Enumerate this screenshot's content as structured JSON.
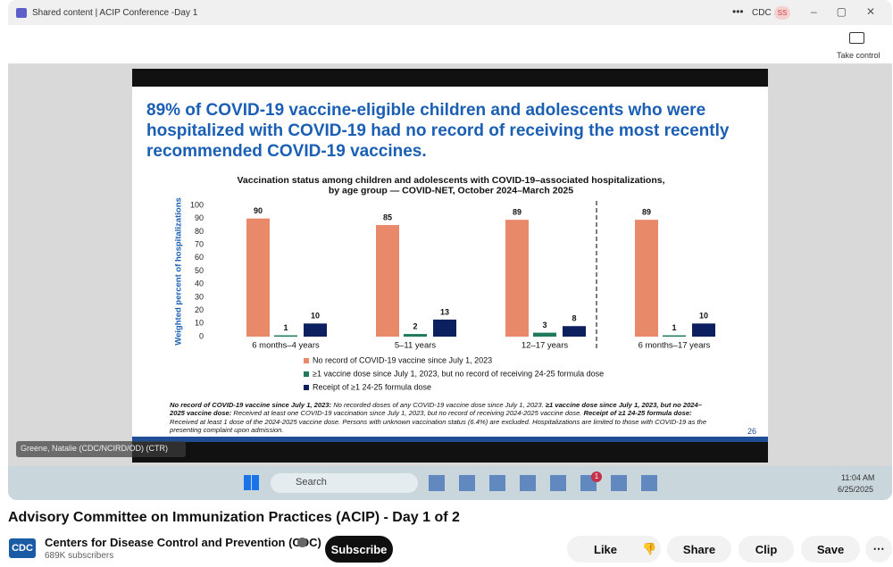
{
  "window": {
    "title": "Shared content | ACIP Conference -Day 1",
    "org": "CDC",
    "user_initials": "SS",
    "take_control": "Take control"
  },
  "slide": {
    "headline": [
      "89% of COVID-19 vaccine-eligible children and adolescents who were",
      "hospitalized with COVID-19 had no record of receiving the most recently",
      "recommended COVID-19 vaccines."
    ],
    "footnote": [
      {
        "term": "No record of COVID-19 vaccine since July 1, 2023:",
        "definition": "No recorded doses of any COVID-19 vaccine dose since July 1, 2023."
      },
      {
        "term": "≥1 vaccine dose since July 1, 2023, but no 2024–2025 vaccine dose:",
        "definition": "Received at least one COVID-19 vaccination since July 1, 2023, but no record of receiving 2024-2025 vaccine dose."
      },
      {
        "term": "Receipt of ≥1 24-25 formula dose:",
        "definition": "Received at least 1 dose of the 2024-2025 vaccine dose. Persons with unknown vaccination status (6.4%) are excluded. Hospitalizations are limited to those with COVID-19 as the presenting complaint upon admission."
      }
    ],
    "page_number": "26"
  },
  "chart_data": {
    "type": "bar",
    "title": [
      "Vaccination status among children and adolescents with COVID-19–associated hospitalizations,",
      "by age group — COVID-NET, October 2024–March 2025"
    ],
    "y_label": "Weighted percent of hospitalizations",
    "categories": [
      "6 months–4 years",
      "5–11 years",
      "12–17 years",
      "6 months–17 years"
    ],
    "series": [
      {
        "name": "No record of COVID-19 vaccine since July 1, 2023",
        "color": "#e8896a",
        "values": [
          90,
          85,
          89,
          89
        ]
      },
      {
        "name": "≥1 vaccine dose since July 1, 2023, but no record of receiving 24-25 formula dose",
        "color": "#1f7a5c",
        "values": [
          1,
          2,
          3,
          1
        ]
      },
      {
        "name": "Receipt of ≥1 24-25 formula dose",
        "color": "#0c1f5e",
        "values": [
          10,
          13,
          8,
          10
        ]
      }
    ],
    "ylim": [
      0,
      100
    ],
    "yticks": [
      0,
      10,
      20,
      30,
      40,
      50,
      60,
      70,
      80,
      90,
      100
    ],
    "grid": false
  },
  "presenter": "Greene, Natalie (CDC/NCIRD/OD) (CTR)",
  "taskbar": {
    "search": "Search",
    "badge": "1",
    "time": "11:04 AM",
    "date": "6/25/2025"
  },
  "video": {
    "title": "Advisory Committee on Immunization Practices (ACIP) - Day 1 of 2",
    "channel_logo": "CDC",
    "channel": "Centers for Disease Control and Prevention (CDC)",
    "subscribers": "689K subscribers",
    "subscribe": "Subscribe",
    "like": "Like",
    "share": "Share",
    "clip": "Clip",
    "save": "Save"
  }
}
